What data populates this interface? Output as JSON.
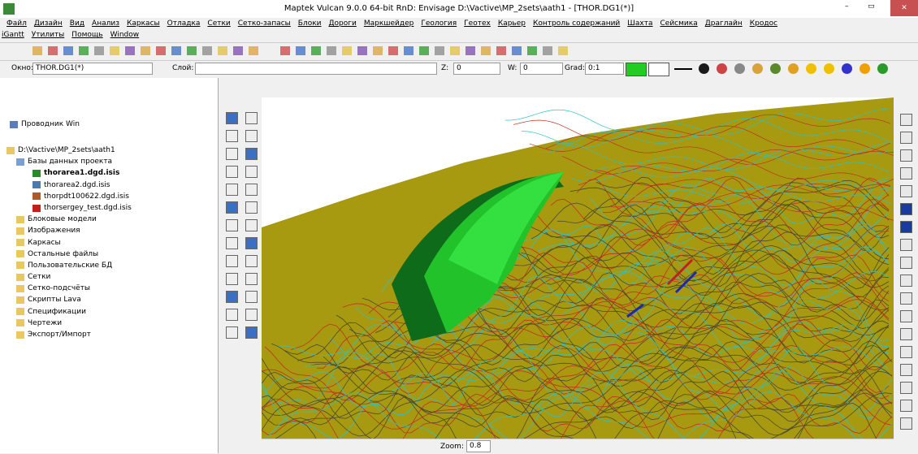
{
  "window": {
    "title": "Maptek Vulcan 9.0.0 64-bit RnD: Envisage  D:\\Vactive\\MP_2sets\\aath1 - [THOR.DG1(*)]"
  },
  "menu": {
    "row1": [
      "Файл",
      "Дизайн",
      "Вид",
      "Анализ",
      "Каркасы",
      "Отладка",
      "Сетки",
      "Сетко-запасы",
      "Блоки",
      "Дороги",
      "Маркшейдер",
      "Геология",
      "Геотех",
      "Карьер",
      "Контроль содержаний",
      "Шахта",
      "Сейсмика",
      "Драглайн",
      "Кродос"
    ],
    "row2": [
      "iGantt",
      "Утилиты",
      "Помощь",
      "Window"
    ]
  },
  "toolbar": {
    "window_label": "Окно:",
    "window_value": "THOR.DG1(*)",
    "layer_label": "Слой:",
    "z_label": "Z:",
    "z_value": "0",
    "w_label": "W:",
    "w_value": "0",
    "grad_label": "Grad:",
    "grad_value": "0:1"
  },
  "explorer": {
    "title": "Проводник Win",
    "root": "D:\\Vactive\\MP_2sets\\aath1",
    "db": {
      "label": "Базы данных проекта",
      "items": [
        "thorarea1.dgd.isis",
        "thorarea2.dgd.isis",
        "thorpdt100622.dgd.isis",
        "thorsergey_test.dgd.isis"
      ]
    },
    "folders": [
      "Блоковые модели",
      "Изображения",
      "Каркасы",
      "Остальные файлы",
      "Пользовательские БД",
      "Сетки",
      "Сетко-подсчёты",
      "Скрипты Lava",
      "Спецификации",
      "Чертежи",
      "Экспорт/Импорт"
    ]
  },
  "statusbar": {
    "zoom_label": "Zoom:",
    "zoom_value": "0.8"
  }
}
